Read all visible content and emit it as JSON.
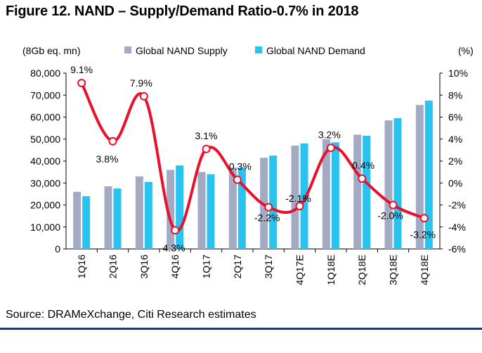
{
  "title": "Figure 12. NAND – Supply/Demand Ratio-0.7% in 2018",
  "source": "Source: DRAMeXchange, Citi Research estimates",
  "colors": {
    "supply": "#a3abc4",
    "demand": "#29c3f0",
    "ratio_line": "#e8102a",
    "footer_line": "#1a3a78"
  },
  "chart_data": {
    "type": "bar",
    "categories": [
      "1Q16",
      "2Q16",
      "3Q16",
      "4Q16",
      "1Q17",
      "2Q17",
      "3Q17",
      "4Q17E",
      "1Q18E",
      "2Q18E",
      "3Q18E",
      "4Q18E"
    ],
    "series": [
      {
        "name": "Global NAND Supply",
        "type": "bar",
        "axis": "left",
        "values": [
          26000,
          28500,
          33000,
          36000,
          35000,
          37000,
          41500,
          47000,
          50000,
          52000,
          58500,
          65500
        ]
      },
      {
        "name": "Global NAND Demand",
        "type": "bar",
        "axis": "left",
        "values": [
          24000,
          27500,
          30500,
          38000,
          34000,
          37000,
          42500,
          48000,
          48500,
          51500,
          59500,
          67500
        ]
      },
      {
        "name": "Supply/Demand Ratio",
        "type": "line",
        "axis": "right",
        "values": [
          9.1,
          3.8,
          7.9,
          -4.3,
          3.1,
          0.3,
          -2.2,
          -2.1,
          3.2,
          0.4,
          -2.0,
          -3.2
        ],
        "labels": [
          "9.1%",
          "3.8%",
          "7.9%",
          "-4.3%",
          "3.1%",
          "0.3%",
          "-2.2%",
          "-2.1%",
          "3.2%",
          "0.4%",
          "-2.0%",
          "-3.2%"
        ]
      }
    ],
    "ylabel_left": "(8Gb eq. mn)",
    "ylabel_right": "(%)",
    "ylim_left": [
      0,
      80000
    ],
    "ylim_right": [
      -6,
      10
    ],
    "yticks_left": [
      "0",
      "10,000",
      "20,000",
      "30,000",
      "40,000",
      "50,000",
      "60,000",
      "70,000",
      "80,000"
    ],
    "yticks_right": [
      "-6%",
      "-4%",
      "-2%",
      "0%",
      "2%",
      "4%",
      "6%",
      "8%",
      "10%"
    ],
    "legend_position": "top",
    "grid": false
  }
}
